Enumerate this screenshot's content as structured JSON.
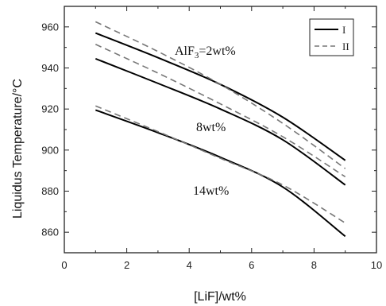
{
  "chart_data": {
    "type": "line",
    "xlabel": "[LiF]/wt%",
    "ylabel": "Liquidus Temperature/°C",
    "xlim": [
      0,
      10
    ],
    "ylim": [
      850,
      970
    ],
    "x_ticks": [
      "0",
      "2",
      "4",
      "6",
      "8",
      "10"
    ],
    "y_ticks": [
      "860",
      "880",
      "900",
      "920",
      "940",
      "960"
    ],
    "grid": false,
    "legend_position": "top-right",
    "legend": [
      {
        "label": "I",
        "style": "solid"
      },
      {
        "label": "II",
        "style": "dashed"
      }
    ],
    "annotations": [
      {
        "text": "AlF",
        "sub": "3",
        "tail": "=2wt%"
      },
      {
        "text": "8wt%"
      },
      {
        "text": "14wt%"
      }
    ],
    "series": [
      {
        "legend": "I",
        "group": "AlF3=2wt%",
        "style": "solid",
        "x": [
          1,
          3,
          5,
          7,
          9
        ],
        "y": [
          957,
          945,
          932,
          916,
          895
        ]
      },
      {
        "legend": "II",
        "group": "AlF3=2wt%",
        "style": "dashed",
        "x": [
          1,
          3,
          5,
          7,
          9
        ],
        "y": [
          962.5,
          948,
          932,
          913,
          891
        ]
      },
      {
        "legend": "I",
        "group": "8wt%",
        "style": "solid",
        "x": [
          1,
          3,
          5,
          7,
          9
        ],
        "y": [
          944.5,
          932.5,
          920,
          905,
          883
        ]
      },
      {
        "legend": "II",
        "group": "8wt%",
        "style": "dashed",
        "x": [
          1,
          3,
          5,
          7,
          9
        ],
        "y": [
          951.5,
          937.5,
          922.5,
          906.5,
          887
        ]
      },
      {
        "legend": "I",
        "group": "14wt%",
        "style": "solid",
        "x": [
          1,
          3,
          5,
          7,
          9
        ],
        "y": [
          919.5,
          908.5,
          896.5,
          882,
          858
        ]
      },
      {
        "legend": "II",
        "group": "14wt%",
        "style": "dashed",
        "x": [
          1,
          3,
          5,
          7,
          9
        ],
        "y": [
          921.5,
          909,
          896,
          883,
          864.5
        ]
      }
    ]
  }
}
